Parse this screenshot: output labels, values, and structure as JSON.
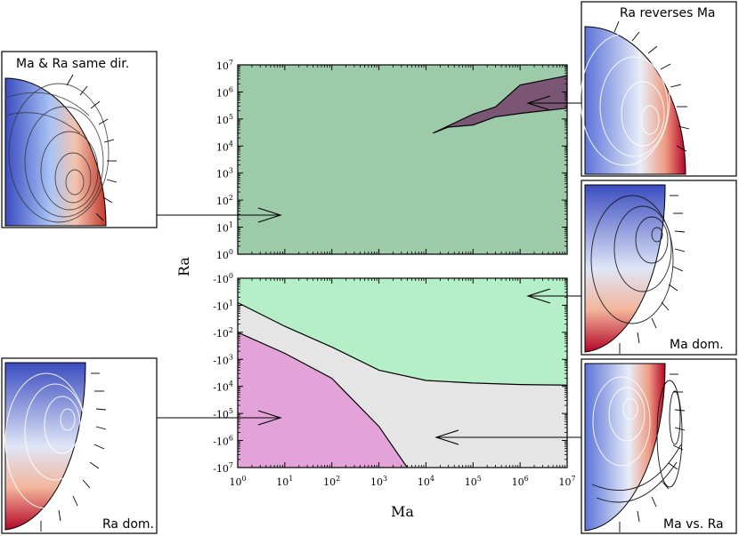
{
  "figure": {
    "xlabel": "Ma",
    "ylabel": "Ra",
    "x_ticks": [
      "10^0",
      "10^1",
      "10^2",
      "10^3",
      "10^4",
      "10^5",
      "10^6",
      "10^7"
    ],
    "top_y_ticks": [
      "10^7",
      "10^6",
      "10^5",
      "10^4",
      "10^3",
      "10^2",
      "10^1",
      "10^0"
    ],
    "bottom_y_ticks": [
      "-10^0",
      "-10^1",
      "-10^2",
      "-10^3",
      "-10^4",
      "-10^5",
      "-10^6",
      "-10^7"
    ]
  },
  "insets": [
    {
      "id": "same-dir",
      "title": "Ma & Ra same dir."
    },
    {
      "id": "ra-dom",
      "title": "Ra dom."
    },
    {
      "id": "ra-reverses",
      "title": "Ra reverses Ma"
    },
    {
      "id": "ma-dom",
      "title": "Ma dom."
    },
    {
      "id": "ma-vs-ra",
      "title": "Ma vs. Ra"
    }
  ],
  "colors": {
    "top_green": "#9dcbaa",
    "top_purple": "#7b5674",
    "bottom_green": "#b5efc7",
    "bottom_gray": "#e5e5e5",
    "bottom_pink": "#e3a2d8",
    "cool": "#3b5fd6",
    "warm": "#d04030"
  },
  "chart_data": {
    "type": "area",
    "x_scale": "log",
    "xlim": [
      1,
      10000000
    ],
    "panels": [
      {
        "name": "top",
        "y_scale": "log",
        "ylim": [
          1,
          10000000
        ],
        "regions": [
          {
            "color": "#9dcbaa",
            "label": "Ma & Ra same dir."
          },
          {
            "color": "#7b5674",
            "label": "Ra reverses Ma",
            "boundary": [
              [
                10000000,
                4000000
              ],
              [
                1000000,
                1800000
              ],
              [
                300000,
                280000
              ],
              [
                100000,
                150000
              ],
              [
                20000,
                40000
              ],
              [
                14000,
                30000
              ],
              [
                30000,
                50000
              ],
              [
                100000,
                60000
              ],
              [
                300000,
                120000
              ],
              [
                1000000,
                160000
              ],
              [
                10000000,
                250000
              ]
            ]
          }
        ]
      },
      {
        "name": "bottom",
        "y_scale": "symlog-negative",
        "ylim": [
          -10000000,
          -1
        ],
        "regions": [
          {
            "color": "#b5efc7",
            "label": "Ma dom."
          },
          {
            "color": "#e5e5e5",
            "label": "Ma vs. Ra"
          },
          {
            "color": "#e3a2d8",
            "label": "Ra dom."
          }
        ],
        "boundaries": [
          {
            "name": "upper",
            "points": [
              [
                1,
                -8
              ],
              [
                10,
                -60
              ],
              [
                100,
                -350
              ],
              [
                1000,
                -2500
              ],
              [
                10000,
                -6000
              ],
              [
                100000,
                -7500
              ],
              [
                1000000,
                -8500
              ],
              [
                10000000,
                -9000
              ]
            ]
          },
          {
            "name": "lower",
            "points": [
              [
                1,
                -100
              ],
              [
                10,
                -600
              ],
              [
                100,
                -5000
              ],
              [
                1000,
                -300000
              ],
              [
                4000,
                -10000000
              ]
            ]
          }
        ]
      }
    ]
  }
}
